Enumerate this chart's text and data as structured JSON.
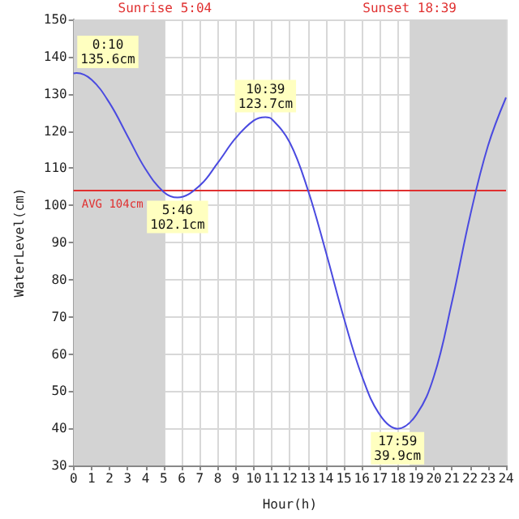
{
  "chart_data": {
    "type": "line",
    "xlabel": "Hour(h)",
    "ylabel": "WaterLevel(cm)",
    "xlim": [
      0,
      24
    ],
    "xticks": [
      0,
      1,
      2,
      3,
      4,
      5,
      6,
      7,
      8,
      9,
      10,
      11,
      12,
      13,
      14,
      15,
      16,
      17,
      18,
      19,
      20,
      21,
      22,
      23,
      24
    ],
    "ylim": [
      30,
      150
    ],
    "yticks": [
      30,
      40,
      50,
      60,
      70,
      80,
      90,
      100,
      110,
      120,
      130,
      140,
      150
    ],
    "grid": true,
    "marker": "none",
    "line_style": "solid",
    "series": [
      {
        "color": "#4a4ae0",
        "x": [
          0,
          0.17,
          1,
          2,
          3,
          4,
          5,
          5.77,
          7,
          8,
          9,
          10,
          10.65,
          11,
          12,
          13,
          14,
          15,
          16,
          17,
          17.98,
          19,
          20,
          21,
          22,
          23,
          24
        ],
        "values": [
          135.5,
          135.6,
          133.8,
          127.5,
          118.6,
          109.7,
          103.6,
          102.1,
          105.3,
          111.4,
          118.1,
          122.8,
          123.7,
          123.2,
          116.9,
          104.2,
          87.5,
          69.7,
          54.1,
          43.6,
          39.9,
          43.5,
          54,
          74,
          97,
          116,
          129
        ]
      }
    ],
    "ref_lines": [
      {
        "axis": "y",
        "value": 104,
        "label": "AVG 104cm",
        "color": "#e03030"
      }
    ],
    "bands": [
      {
        "axis": "x",
        "from": 0,
        "to": 5.07,
        "label": "Sunrise 5:04",
        "color": "#d3d3d3"
      },
      {
        "axis": "x",
        "from": 18.65,
        "to": 24,
        "label": "Sunset 18:39",
        "color": "#d3d3d3"
      }
    ],
    "annotations": [
      {
        "text": "0:10\n135.6cm",
        "x": 0.17,
        "y": 135.6
      },
      {
        "text": "5:46\n102.1cm",
        "x": 5.77,
        "y": 102.1
      },
      {
        "text": "10:39\n123.7cm",
        "x": 10.65,
        "y": 123.7
      },
      {
        "text": "17:59\n39.9cm",
        "x": 17.98,
        "y": 39.9
      }
    ]
  }
}
